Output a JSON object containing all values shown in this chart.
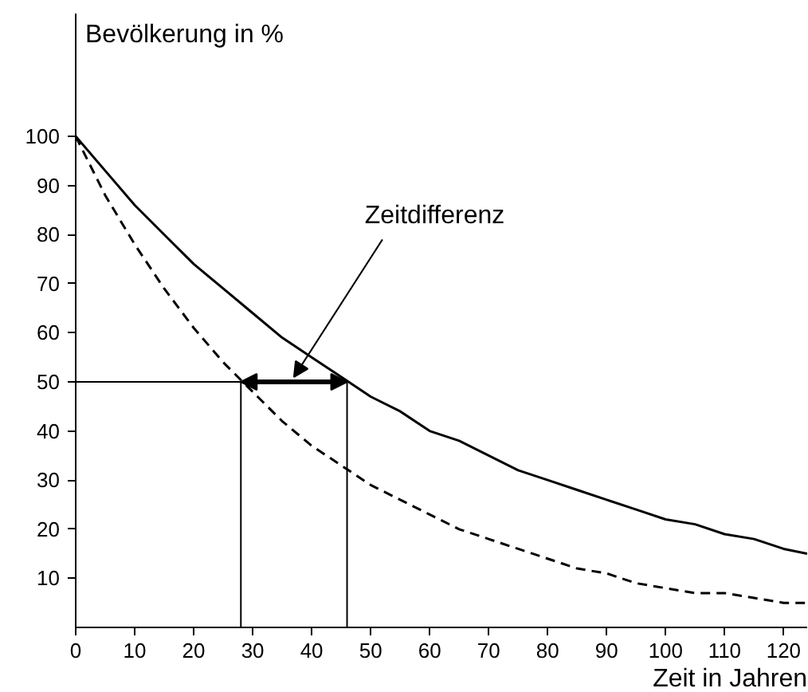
{
  "chart_data": {
    "type": "line",
    "xlabel": "Zeit in Jahren",
    "ylabel": "Bevölkerung in %",
    "xlim": [
      0,
      124
    ],
    "ylim": [
      0,
      125
    ],
    "xticks": [
      0,
      10,
      20,
      30,
      40,
      50,
      60,
      70,
      80,
      90,
      100,
      110,
      120
    ],
    "yticks": [
      10,
      20,
      30,
      40,
      50,
      60,
      70,
      80,
      90,
      100
    ],
    "grid": false,
    "marker": "none",
    "series": [
      {
        "color": "#000000",
        "line_style": "solid",
        "x": [
          0,
          5,
          10,
          15,
          20,
          25,
          30,
          35,
          40,
          45,
          50,
          55,
          60,
          65,
          70,
          75,
          80,
          85,
          90,
          95,
          100,
          105,
          110,
          115,
          120,
          124
        ],
        "values": [
          100,
          93,
          86,
          80,
          74,
          69,
          64,
          59,
          55,
          51,
          47,
          44,
          40,
          38,
          35,
          32,
          30,
          28,
          26,
          24,
          22,
          21,
          19,
          18,
          16,
          15
        ]
      },
      {
        "color": "#000000",
        "line_style": "dashed",
        "x": [
          0,
          5,
          10,
          15,
          20,
          25,
          30,
          35,
          40,
          45,
          50,
          55,
          60,
          65,
          70,
          75,
          80,
          85,
          90,
          95,
          100,
          105,
          110,
          115,
          120,
          124
        ],
        "values": [
          100,
          88,
          78,
          69,
          61,
          54,
          48,
          42,
          37,
          33,
          29,
          26,
          23,
          20,
          18,
          16,
          14,
          12,
          11,
          9,
          8,
          7,
          7,
          6,
          5,
          5
        ]
      },
      {
        "color": "#000000",
        "line_style": "solid",
        "x": [
          0,
          28
        ],
        "values": [
          50,
          50
        ]
      },
      {
        "color": "#000000",
        "line_style": "solid",
        "x": [
          28,
          28
        ],
        "values": [
          0,
          50
        ]
      },
      {
        "color": "#000000",
        "line_style": "solid",
        "x": [
          46,
          46
        ],
        "values": [
          0,
          50
        ]
      }
    ],
    "annotations": [
      "Zeitdifferenz"
    ]
  }
}
